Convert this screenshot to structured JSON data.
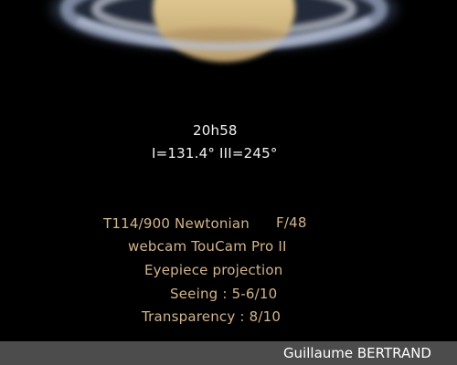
{
  "observation": {
    "time": "20h58",
    "central_meridians": "I=131.4° III=245°"
  },
  "equipment": {
    "telescope": "T114/900 Newtonian",
    "focal_ratio": "F/48",
    "camera": "webcam TouCam Pro II",
    "method": "Eyepiece projection",
    "seeing": "Seeing : 5-6/10",
    "transparency": "Transparency : 8/10"
  },
  "footer": {
    "credit": "Guillaume BERTRAND"
  },
  "colors": {
    "background": "#000000",
    "caption_white": "#f2f2f2",
    "caption_tan": "#d2b48c",
    "footer_bar": "#4c4c4c"
  }
}
